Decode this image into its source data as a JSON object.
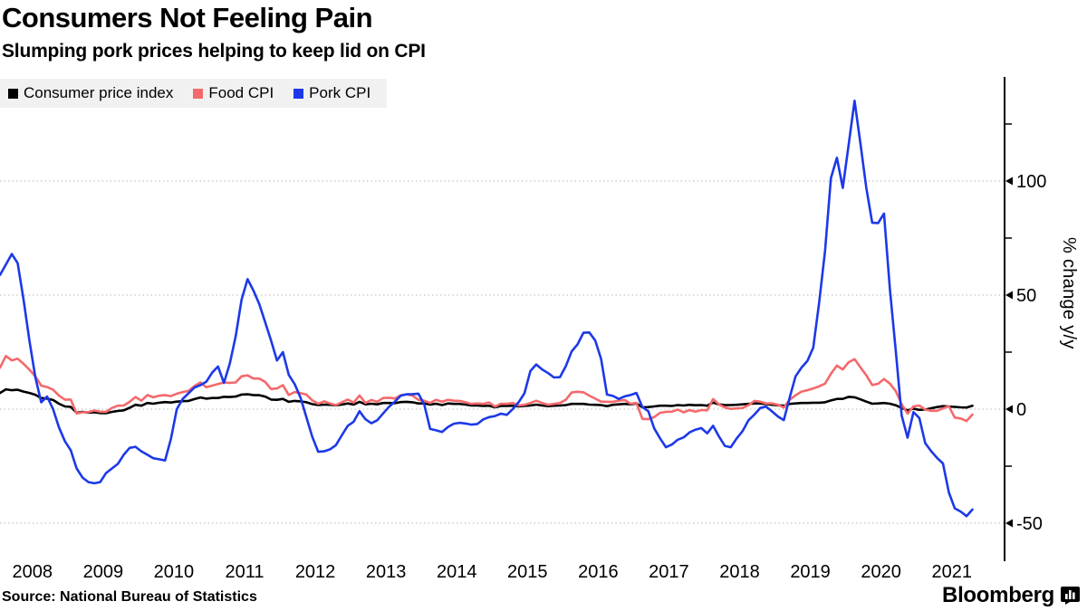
{
  "header": {
    "title": "Consumers Not Feeling Pain",
    "subtitle": "Slumping pork prices helping to keep lid on CPI"
  },
  "legend": {
    "items": [
      {
        "label": "Consumer price index",
        "color": "#000000"
      },
      {
        "label": "Food CPI",
        "color": "#f4696b"
      },
      {
        "label": "Pork CPI",
        "color": "#1c39e8"
      }
    ]
  },
  "source_line": "Source: National Bureau of Statistics",
  "branding": {
    "name": "Bloomberg"
  },
  "chart_data": {
    "type": "line",
    "title": "Consumers Not Feeling Pain",
    "subtitle": "Slumping pork prices helping to keep lid on CPI",
    "xlabel": "",
    "ylabel": "% change y/y",
    "frequency": "monthly",
    "x_start": "2008-01",
    "x_end": "2021-10",
    "x_tick_labels": [
      "2008",
      "2009",
      "2010",
      "2011",
      "2012",
      "2013",
      "2014",
      "2015",
      "2016",
      "2017",
      "2018",
      "2019",
      "2020",
      "2021"
    ],
    "y_tick_values": [
      100,
      50,
      0,
      -50
    ],
    "y_minor_tick_values": [
      125,
      75,
      25,
      -25
    ],
    "ylim": [
      -60,
      145
    ],
    "grid": "dotted horizontal at labeled ticks",
    "legend_position": "top-left",
    "axis_side": "right",
    "series": [
      {
        "name": "Consumer price index",
        "color": "#000000",
        "values": [
          7.1,
          8.7,
          8.3,
          8.5,
          7.7,
          7.1,
          6.3,
          4.9,
          4.6,
          4.0,
          2.4,
          1.2,
          1.0,
          -1.6,
          -1.2,
          -1.5,
          -1.4,
          -1.7,
          -1.8,
          -1.2,
          -0.8,
          -0.5,
          0.6,
          1.9,
          1.5,
          2.7,
          2.4,
          2.8,
          3.1,
          2.9,
          3.3,
          3.5,
          3.6,
          4.4,
          5.1,
          4.6,
          4.9,
          4.9,
          5.4,
          5.3,
          5.5,
          6.4,
          6.5,
          6.2,
          6.1,
          5.5,
          4.2,
          4.1,
          4.5,
          3.2,
          3.6,
          3.4,
          3.0,
          2.2,
          1.8,
          2.0,
          1.9,
          1.7,
          2.0,
          2.5,
          2.0,
          3.2,
          2.1,
          2.4,
          2.1,
          2.7,
          2.7,
          2.6,
          3.1,
          3.2,
          3.0,
          2.5,
          2.5,
          2.0,
          2.4,
          1.8,
          2.5,
          2.3,
          2.3,
          2.0,
          1.6,
          1.6,
          1.4,
          1.5,
          0.8,
          1.4,
          1.4,
          1.5,
          1.2,
          1.4,
          1.6,
          2.0,
          1.6,
          1.3,
          1.5,
          1.6,
          1.8,
          2.3,
          2.3,
          2.3,
          2.0,
          1.9,
          1.8,
          1.3,
          1.9,
          2.1,
          2.3,
          2.1,
          2.5,
          0.8,
          0.9,
          1.2,
          1.5,
          1.5,
          1.4,
          1.8,
          1.6,
          1.9,
          1.7,
          1.8,
          1.5,
          2.9,
          2.1,
          1.8,
          1.8,
          1.9,
          2.1,
          2.3,
          2.5,
          2.5,
          2.2,
          1.9,
          1.7,
          1.5,
          2.3,
          2.5,
          2.7,
          2.7,
          2.8,
          2.8,
          3.0,
          3.8,
          4.5,
          4.5,
          5.4,
          5.2,
          4.3,
          3.3,
          2.4,
          2.5,
          2.7,
          2.4,
          1.7,
          0.5,
          -0.5,
          0.2,
          -0.3,
          -0.2,
          0.4,
          0.9,
          1.3,
          1.1,
          1.0,
          0.8,
          0.7,
          1.5
        ]
      },
      {
        "name": "Food CPI",
        "color": "#f4696b",
        "values": [
          18.2,
          23.3,
          21.4,
          22.1,
          19.9,
          17.3,
          14.4,
          10.3,
          9.7,
          8.5,
          5.9,
          4.2,
          4.2,
          -1.9,
          -1.4,
          -1.3,
          -0.6,
          -1.1,
          -1.2,
          0.5,
          1.5,
          1.6,
          3.2,
          5.3,
          3.7,
          6.2,
          5.2,
          5.9,
          6.1,
          5.7,
          6.8,
          7.5,
          8.0,
          10.1,
          11.7,
          9.6,
          10.3,
          11.0,
          11.7,
          11.5,
          11.7,
          14.4,
          14.8,
          13.4,
          13.4,
          11.9,
          8.8,
          9.1,
          10.5,
          6.2,
          7.5,
          7.0,
          6.4,
          3.8,
          2.4,
          3.4,
          2.5,
          1.8,
          3.0,
          4.2,
          2.9,
          6.0,
          2.7,
          4.0,
          3.2,
          4.9,
          5.0,
          4.7,
          6.1,
          6.5,
          5.9,
          4.1,
          3.7,
          2.7,
          4.1,
          3.3,
          4.1,
          3.7,
          3.6,
          3.0,
          2.3,
          2.5,
          2.3,
          2.9,
          1.1,
          2.4,
          2.3,
          2.7,
          1.6,
          1.9,
          2.7,
          3.7,
          2.7,
          1.9,
          2.3,
          2.7,
          4.1,
          7.3,
          7.6,
          7.4,
          5.9,
          4.6,
          3.3,
          3.2,
          3.2,
          3.7,
          4.0,
          2.4,
          2.7,
          -4.3,
          -4.4,
          -3.5,
          -1.6,
          -1.2,
          -1.1,
          -0.2,
          -1.4,
          -0.4,
          -1.1,
          -0.4,
          -0.5,
          4.4,
          2.1,
          0.7,
          0.1,
          0.3,
          0.5,
          1.7,
          3.6,
          3.3,
          2.5,
          2.5,
          1.9,
          0.7,
          4.1,
          6.1,
          7.7,
          8.3,
          9.1,
          10.0,
          11.2,
          15.5,
          19.1,
          17.4,
          20.6,
          21.9,
          18.3,
          14.8,
          10.6,
          11.1,
          13.2,
          11.2,
          7.9,
          2.2,
          -2.0,
          1.2,
          1.6,
          -0.2,
          -0.7,
          -0.7,
          0.3,
          1.3,
          -3.7,
          -4.1,
          -5.2,
          -2.4
        ]
      },
      {
        "name": "Pork CPI",
        "color": "#1c39e8",
        "values": [
          58.8,
          63.4,
          68.0,
          64.0,
          48.0,
          30.0,
          14.0,
          3.0,
          5.5,
          0.0,
          -8.0,
          -14.0,
          -18.0,
          -26.0,
          -30.0,
          -32.0,
          -32.5,
          -32.0,
          -28.0,
          -26.0,
          -24.0,
          -20.0,
          -17.0,
          -16.5,
          -18.5,
          -20.0,
          -21.5,
          -22.0,
          -22.5,
          -13.0,
          0.0,
          4.5,
          7.0,
          9.5,
          10.5,
          12.0,
          16.0,
          18.7,
          11.5,
          20.0,
          32.0,
          48.0,
          57.0,
          52.0,
          46.0,
          38.0,
          30.0,
          21.3,
          25.0,
          15.0,
          11.0,
          5.0,
          -3.6,
          -12.2,
          -18.7,
          -18.5,
          -17.6,
          -15.8,
          -11.5,
          -7.3,
          -5.5,
          -0.9,
          -4.4,
          -6.2,
          -4.9,
          -1.9,
          1.0,
          3.3,
          5.9,
          6.5,
          6.6,
          6.8,
          2.0,
          -8.7,
          -9.3,
          -10.0,
          -7.8,
          -6.4,
          -6.0,
          -6.3,
          -6.8,
          -6.5,
          -4.5,
          -3.5,
          -3.0,
          -2.0,
          -2.5,
          0.0,
          3.0,
          7.0,
          16.7,
          19.6,
          17.4,
          15.8,
          13.9,
          14.0,
          18.8,
          25.3,
          28.4,
          33.5,
          33.6,
          30.1,
          22.0,
          6.4,
          5.8,
          4.5,
          5.6,
          6.2,
          7.1,
          0.9,
          -0.9,
          -8.4,
          -12.8,
          -16.7,
          -15.5,
          -13.4,
          -12.4,
          -10.2,
          -9.0,
          -8.3,
          -10.6,
          -7.3,
          -12.0,
          -16.1,
          -16.7,
          -12.8,
          -9.6,
          -4.9,
          -2.4,
          0.5,
          1.1,
          -1.0,
          -3.2,
          -4.8,
          5.1,
          14.4,
          18.2,
          21.1,
          27.0,
          46.7,
          69.3,
          101.3,
          110.2,
          97.0,
          116.0,
          135.2,
          116.4,
          96.9,
          81.7,
          81.6,
          85.7,
          52.6,
          25.5,
          -2.8,
          -12.5,
          -1.3,
          -3.9,
          -14.9,
          -18.4,
          -21.4,
          -23.8,
          -36.5,
          -43.5,
          -44.9,
          -46.9,
          -44.0
        ]
      }
    ]
  }
}
